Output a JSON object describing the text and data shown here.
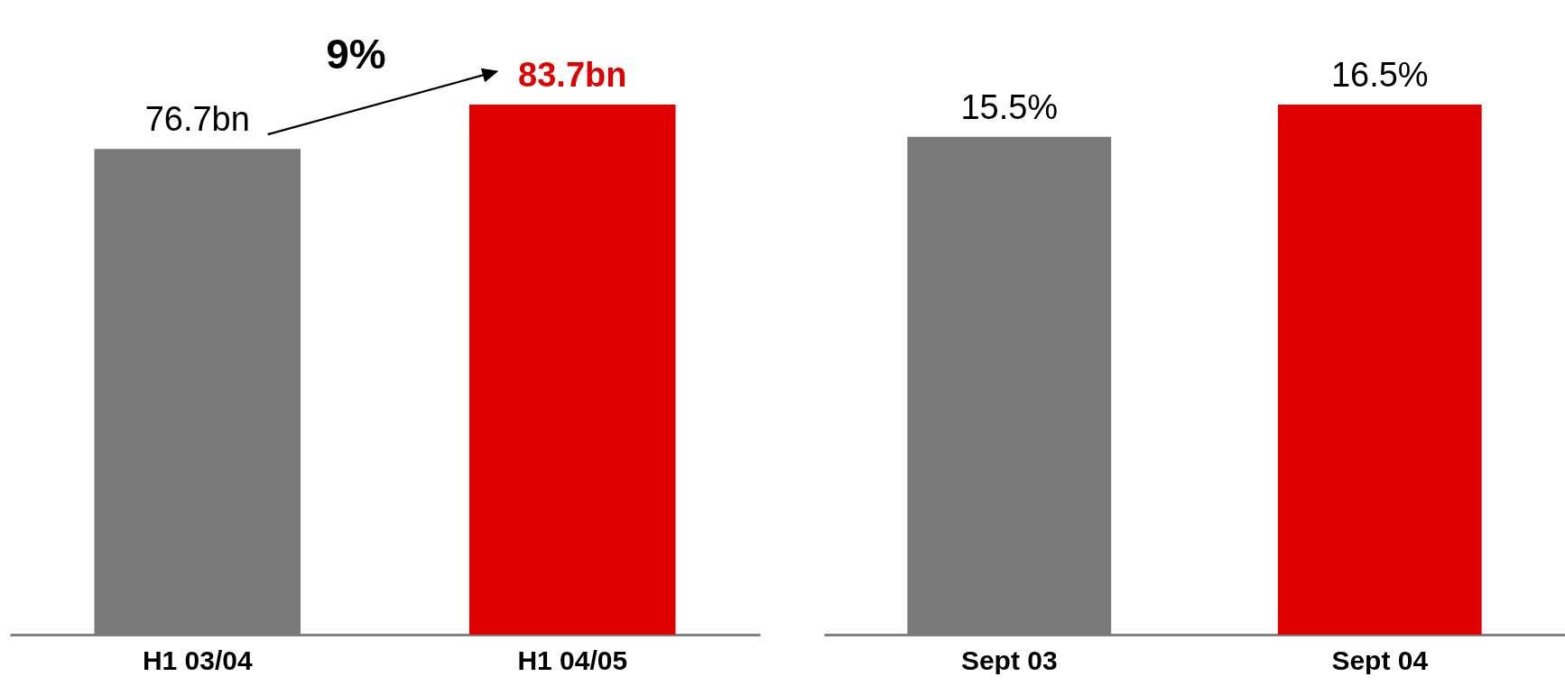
{
  "chart_data": [
    {
      "type": "bar",
      "categories": [
        "H1 03/04",
        "H1 04/05"
      ],
      "values": [
        76.7,
        83.7
      ],
      "colors": [
        "#7a7a7a",
        "#e00000"
      ],
      "value_labels": [
        "76.7bn",
        "83.7bn"
      ],
      "annotations": [
        "9%"
      ],
      "tick_labels": "x"
    },
    {
      "type": "bar",
      "categories": [
        "Sept 03",
        "Sept 04"
      ],
      "values": [
        15.5,
        16.5
      ],
      "colors": [
        "#7a7a7a",
        "#e00000"
      ],
      "value_labels": [
        "15.5%",
        "16.5%"
      ],
      "tick_labels": "x"
    }
  ]
}
